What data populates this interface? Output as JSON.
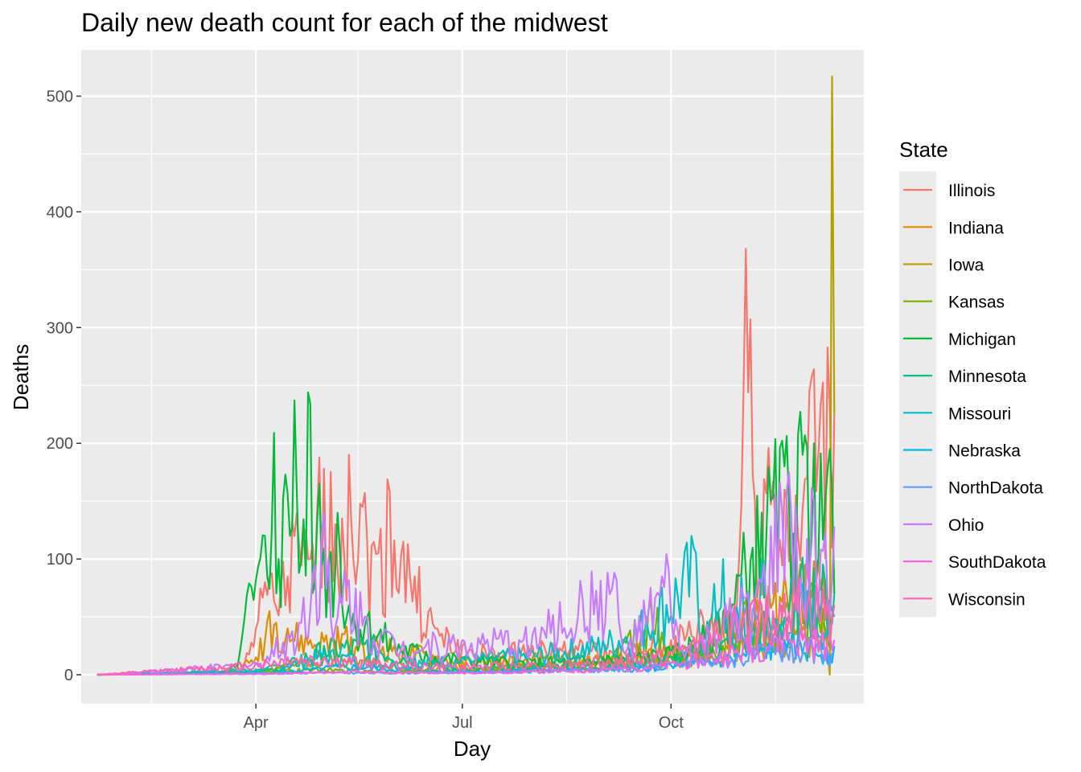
{
  "chart_data": {
    "type": "line",
    "title": "Daily new death count for each of the midwest",
    "xlabel": "Day",
    "ylabel": "Deaths",
    "x_range": [
      "2020-01-22",
      "2020-12-12"
    ],
    "xlim": [
      "2020-01-15",
      "2020-12-25"
    ],
    "ylim": [
      -25,
      540
    ],
    "x_ticks": [
      {
        "date": "2020-04-01",
        "label": "Apr"
      },
      {
        "date": "2020-07-01",
        "label": "Jul"
      },
      {
        "date": "2020-10-01",
        "label": "Oct"
      }
    ],
    "x_minor": [
      "2020-02-15",
      "2020-05-16",
      "2020-08-16",
      "2020-11-16"
    ],
    "y_ticks": [
      0,
      100,
      200,
      300,
      400,
      500
    ],
    "grid": true,
    "legend": {
      "title": "State",
      "position": "right"
    },
    "series": [
      {
        "name": "Illinois",
        "color": "#F8766D",
        "keypoints": [
          [
            "2020-01-22",
            0
          ],
          [
            "2020-03-15",
            1
          ],
          [
            "2020-03-25",
            10
          ],
          [
            "2020-04-01",
            40
          ],
          [
            "2020-04-05",
            80
          ],
          [
            "2020-04-12",
            75
          ],
          [
            "2020-04-18",
            120
          ],
          [
            "2020-04-25",
            100
          ],
          [
            "2020-05-01",
            178
          ],
          [
            "2020-05-06",
            130
          ],
          [
            "2020-05-12",
            190
          ],
          [
            "2020-05-18",
            145
          ],
          [
            "2020-05-25",
            105
          ],
          [
            "2020-05-30",
            158
          ],
          [
            "2020-06-05",
            115
          ],
          [
            "2020-06-10",
            85
          ],
          [
            "2020-06-20",
            40
          ],
          [
            "2020-07-01",
            25
          ],
          [
            "2020-07-15",
            20
          ],
          [
            "2020-08-01",
            25
          ],
          [
            "2020-08-20",
            25
          ],
          [
            "2020-09-10",
            20
          ],
          [
            "2020-10-01",
            30
          ],
          [
            "2020-10-15",
            50
          ],
          [
            "2020-10-30",
            60
          ],
          [
            "2020-11-03",
            368
          ],
          [
            "2020-11-07",
            150
          ],
          [
            "2020-11-13",
            196
          ],
          [
            "2020-11-20",
            160
          ],
          [
            "2020-11-26",
            120
          ],
          [
            "2020-12-03",
            264
          ],
          [
            "2020-12-06",
            234
          ],
          [
            "2020-12-10",
            232
          ],
          [
            "2020-12-12",
            225
          ]
        ]
      },
      {
        "name": "Indiana",
        "color": "#DE8C00",
        "keypoints": [
          [
            "2020-01-22",
            0
          ],
          [
            "2020-03-20",
            2
          ],
          [
            "2020-04-01",
            15
          ],
          [
            "2020-04-07",
            55
          ],
          [
            "2020-04-15",
            40
          ],
          [
            "2020-04-25",
            30
          ],
          [
            "2020-05-10",
            35
          ],
          [
            "2020-06-01",
            25
          ],
          [
            "2020-07-01",
            12
          ],
          [
            "2020-08-01",
            15
          ],
          [
            "2020-09-01",
            15
          ],
          [
            "2020-10-01",
            20
          ],
          [
            "2020-10-20",
            35
          ],
          [
            "2020-11-10",
            60
          ],
          [
            "2020-11-25",
            80
          ],
          [
            "2020-12-12",
            90
          ]
        ]
      },
      {
        "name": "Iowa",
        "color": "#B79F00",
        "keypoints": [
          [
            "2020-01-22",
            0
          ],
          [
            "2020-04-01",
            2
          ],
          [
            "2020-05-01",
            15
          ],
          [
            "2020-06-01",
            10
          ],
          [
            "2020-07-01",
            5
          ],
          [
            "2020-08-01",
            8
          ],
          [
            "2020-09-01",
            10
          ],
          [
            "2020-10-01",
            15
          ],
          [
            "2020-11-01",
            30
          ],
          [
            "2020-12-08",
            40
          ],
          [
            "2020-12-10",
            0
          ],
          [
            "2020-12-11",
            517
          ],
          [
            "2020-12-12",
            225
          ]
        ]
      },
      {
        "name": "Kansas",
        "color": "#7CAE00",
        "keypoints": [
          [
            "2020-01-22",
            0
          ],
          [
            "2020-04-01",
            3
          ],
          [
            "2020-05-01",
            5
          ],
          [
            "2020-06-01",
            3
          ],
          [
            "2020-07-01",
            5
          ],
          [
            "2020-08-01",
            8
          ],
          [
            "2020-09-01",
            10
          ],
          [
            "2020-09-25",
            58
          ],
          [
            "2020-10-01",
            15
          ],
          [
            "2020-10-20",
            25
          ],
          [
            "2020-11-10",
            40
          ],
          [
            "2020-11-25",
            70
          ],
          [
            "2020-12-12",
            60
          ]
        ]
      },
      {
        "name": "Michigan",
        "color": "#00BA38",
        "keypoints": [
          [
            "2020-01-22",
            0
          ],
          [
            "2020-03-18",
            2
          ],
          [
            "2020-03-25",
            20
          ],
          [
            "2020-03-29",
            79
          ],
          [
            "2020-04-01",
            82
          ],
          [
            "2020-04-05",
            120
          ],
          [
            "2020-04-08",
            125
          ],
          [
            "2020-04-09",
            209
          ],
          [
            "2020-04-11",
            100
          ],
          [
            "2020-04-14",
            173
          ],
          [
            "2020-04-16",
            120
          ],
          [
            "2020-04-18",
            237
          ],
          [
            "2020-04-21",
            100
          ],
          [
            "2020-04-24",
            244
          ],
          [
            "2020-04-27",
            80
          ],
          [
            "2020-04-29",
            165
          ],
          [
            "2020-05-03",
            95
          ],
          [
            "2020-05-07",
            140
          ],
          [
            "2020-05-12",
            60
          ],
          [
            "2020-05-20",
            50
          ],
          [
            "2020-06-01",
            30
          ],
          [
            "2020-06-15",
            20
          ],
          [
            "2020-07-01",
            15
          ],
          [
            "2020-08-01",
            12
          ],
          [
            "2020-09-01",
            15
          ],
          [
            "2020-10-01",
            20
          ],
          [
            "2020-10-20",
            40
          ],
          [
            "2020-11-10",
            140
          ],
          [
            "2020-11-20",
            180
          ],
          [
            "2020-11-28",
            190
          ],
          [
            "2020-12-03",
            200
          ],
          [
            "2020-12-08",
            150
          ],
          [
            "2020-12-10",
            195
          ],
          [
            "2020-12-12",
            70
          ]
        ]
      },
      {
        "name": "Minnesota",
        "color": "#00C08B",
        "keypoints": [
          [
            "2020-01-22",
            0
          ],
          [
            "2020-04-10",
            5
          ],
          [
            "2020-05-01",
            25
          ],
          [
            "2020-05-20",
            30
          ],
          [
            "2020-06-10",
            15
          ],
          [
            "2020-07-01",
            5
          ],
          [
            "2020-08-01",
            8
          ],
          [
            "2020-09-01",
            10
          ],
          [
            "2020-10-01",
            15
          ],
          [
            "2020-10-25",
            30
          ],
          [
            "2020-11-15",
            50
          ],
          [
            "2020-12-01",
            90
          ],
          [
            "2020-12-12",
            70
          ]
        ]
      },
      {
        "name": "Missouri",
        "color": "#00BFC4",
        "keypoints": [
          [
            "2020-01-22",
            0
          ],
          [
            "2020-04-05",
            5
          ],
          [
            "2020-05-01",
            20
          ],
          [
            "2020-06-01",
            10
          ],
          [
            "2020-07-01",
            15
          ],
          [
            "2020-08-01",
            20
          ],
          [
            "2020-09-01",
            30
          ],
          [
            "2020-09-20",
            50
          ],
          [
            "2020-10-12",
            105
          ],
          [
            "2020-10-15",
            20
          ],
          [
            "2020-10-24",
            100
          ],
          [
            "2020-10-27",
            20
          ],
          [
            "2020-11-01",
            85
          ],
          [
            "2020-11-04",
            20
          ],
          [
            "2020-11-10",
            100
          ],
          [
            "2020-11-15",
            40
          ],
          [
            "2020-11-25",
            70
          ],
          [
            "2020-12-12",
            50
          ]
        ]
      },
      {
        "name": "Nebraska",
        "color": "#00B4F0",
        "keypoints": [
          [
            "2020-01-22",
            0
          ],
          [
            "2020-04-10",
            2
          ],
          [
            "2020-05-10",
            8
          ],
          [
            "2020-06-10",
            5
          ],
          [
            "2020-07-01",
            3
          ],
          [
            "2020-08-01",
            5
          ],
          [
            "2020-09-01",
            5
          ],
          [
            "2020-10-01",
            8
          ],
          [
            "2020-10-25",
            15
          ],
          [
            "2020-11-20",
            30
          ],
          [
            "2020-12-12",
            25
          ]
        ]
      },
      {
        "name": "NorthDakota",
        "color": "#619CFF",
        "keypoints": [
          [
            "2020-01-22",
            0
          ],
          [
            "2020-05-01",
            2
          ],
          [
            "2020-07-01",
            2
          ],
          [
            "2020-09-01",
            5
          ],
          [
            "2020-10-01",
            10
          ],
          [
            "2020-10-25",
            15
          ],
          [
            "2020-11-20",
            25
          ],
          [
            "2020-12-12",
            20
          ]
        ]
      },
      {
        "name": "Ohio",
        "color": "#C77CFF",
        "keypoints": [
          [
            "2020-01-22",
            0
          ],
          [
            "2020-04-01",
            10
          ],
          [
            "2020-04-20",
            45
          ],
          [
            "2020-05-01",
            140
          ],
          [
            "2020-05-05",
            30
          ],
          [
            "2020-05-10",
            90
          ],
          [
            "2020-05-20",
            50
          ],
          [
            "2020-06-01",
            30
          ],
          [
            "2020-07-01",
            30
          ],
          [
            "2020-08-01",
            35
          ],
          [
            "2020-09-06",
            88
          ],
          [
            "2020-09-10",
            20
          ],
          [
            "2020-09-30",
            90
          ],
          [
            "2020-10-05",
            20
          ],
          [
            "2020-10-20",
            40
          ],
          [
            "2020-11-10",
            80
          ],
          [
            "2020-11-22",
            175
          ],
          [
            "2020-11-28",
            60
          ],
          [
            "2020-12-03",
            150
          ],
          [
            "2020-12-12",
            128
          ]
        ]
      },
      {
        "name": "SouthDakota",
        "color": "#F564E3",
        "keypoints": [
          [
            "2020-01-22",
            0
          ],
          [
            "2020-04-10",
            1
          ],
          [
            "2020-05-10",
            3
          ],
          [
            "2020-06-10",
            2
          ],
          [
            "2020-07-01",
            2
          ],
          [
            "2020-08-01",
            3
          ],
          [
            "2020-09-01",
            5
          ],
          [
            "2020-10-01",
            10
          ],
          [
            "2020-10-25",
            20
          ],
          [
            "2020-11-20",
            40
          ],
          [
            "2020-12-12",
            30
          ]
        ]
      },
      {
        "name": "Wisconsin",
        "color": "#FF64B0",
        "keypoints": [
          [
            "2020-01-22",
            0
          ],
          [
            "2020-04-01",
            10
          ],
          [
            "2020-04-15",
            15
          ],
          [
            "2020-05-01",
            15
          ],
          [
            "2020-06-01",
            10
          ],
          [
            "2020-07-01",
            8
          ],
          [
            "2020-08-01",
            10
          ],
          [
            "2020-09-01",
            12
          ],
          [
            "2020-10-01",
            20
          ],
          [
            "2020-10-20",
            40
          ],
          [
            "2020-11-10",
            60
          ],
          [
            "2020-11-20",
            70
          ],
          [
            "2020-12-12",
            60
          ]
        ]
      }
    ]
  }
}
